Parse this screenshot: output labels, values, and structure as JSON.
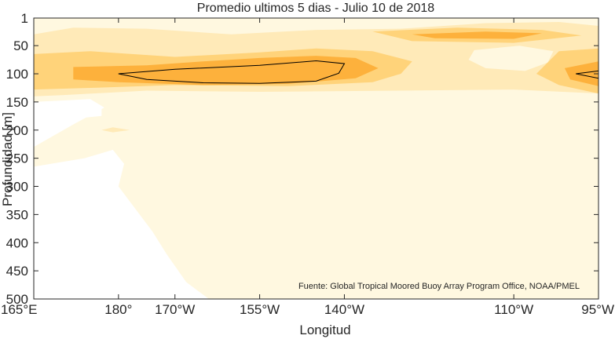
{
  "chart_data": {
    "type": "heatmap",
    "title": "Promedio ultimos 5 dias - Julio 10 de 2018",
    "xlabel": "Longitud",
    "ylabel": "Profundidad [m]",
    "x_ticks": [
      {
        "value": 165,
        "label": "165°E"
      },
      {
        "value": 180,
        "label": "180°"
      },
      {
        "value": 190,
        "label": "170°W"
      },
      {
        "value": 205,
        "label": "155°W"
      },
      {
        "value": 220,
        "label": "140°W"
      },
      {
        "value": 250,
        "label": "110°W"
      },
      {
        "value": 265,
        "label": "95°W"
      }
    ],
    "y_ticks": [
      {
        "value": 1,
        "label": "1"
      },
      {
        "value": 50,
        "label": "50"
      },
      {
        "value": 100,
        "label": "100"
      },
      {
        "value": 150,
        "label": "150"
      },
      {
        "value": 200,
        "label": "200"
      },
      {
        "value": 250,
        "label": "250"
      },
      {
        "value": 300,
        "label": "300"
      },
      {
        "value": 350,
        "label": "350"
      },
      {
        "value": 400,
        "label": "400"
      },
      {
        "value": 450,
        "label": "450"
      },
      {
        "value": 500,
        "label": "500"
      }
    ],
    "xlim": [
      165,
      265
    ],
    "ylim": [
      1,
      500
    ],
    "y_reversed": true,
    "annotation": "Fuente: Global Tropical Moored Buoy Array Program Office, NOAA/PMEL",
    "colors": {
      "level0": "#ffffff",
      "level1": "#fff8e0",
      "level2": "#ffeab8",
      "level3": "#ffd37a",
      "level4": "#fdb13c",
      "level5": "#f7882a",
      "contour": "#000000",
      "axis": "#262626"
    },
    "regions": [
      {
        "level": 0,
        "points": [
          [
            165,
            150
          ],
          [
            175,
            145
          ],
          [
            177.5,
            160
          ],
          [
            172,
            190
          ],
          [
            165,
            230
          ]
        ]
      },
      {
        "level": 0,
        "points": [
          [
            165,
            265
          ],
          [
            174,
            250
          ],
          [
            179,
            235
          ],
          [
            181,
            260
          ],
          [
            180,
            300
          ],
          [
            183,
            340
          ],
          [
            186,
            380
          ],
          [
            188.5,
            420
          ],
          [
            192,
            470
          ],
          [
            196,
            500
          ],
          [
            165,
            500
          ]
        ]
      },
      {
        "level": 0,
        "points": [
          [
            173,
            160
          ],
          [
            177,
            160
          ],
          [
            177,
            175
          ],
          [
            172,
            180
          ],
          [
            166,
            185
          ],
          [
            166,
            175
          ]
        ]
      },
      {
        "level": 0,
        "points": [
          [
            248,
            70
          ],
          [
            251,
            66
          ],
          [
            254,
            75
          ],
          [
            250,
            78
          ]
        ]
      },
      {
        "level": 2,
        "points": [
          [
            165,
            30
          ],
          [
            172,
            18
          ],
          [
            185,
            20
          ],
          [
            200,
            30
          ],
          [
            215,
            22
          ],
          [
            230,
            20
          ],
          [
            245,
            10
          ],
          [
            258,
            8
          ],
          [
            265,
            15
          ],
          [
            265,
            135
          ],
          [
            250,
            128
          ],
          [
            230,
            130
          ],
          [
            205,
            132
          ],
          [
            185,
            130
          ],
          [
            170,
            138
          ],
          [
            165,
            140
          ]
        ]
      },
      {
        "level": 1,
        "points": [
          [
            243,
            58
          ],
          [
            251,
            50
          ],
          [
            257,
            60
          ],
          [
            256,
            80
          ],
          [
            252,
            95
          ],
          [
            245,
            90
          ],
          [
            242,
            75
          ]
        ]
      },
      {
        "level": 3,
        "points": [
          [
            165,
            65
          ],
          [
            175,
            60
          ],
          [
            190,
            70
          ],
          [
            205,
            62
          ],
          [
            215,
            55
          ],
          [
            225,
            60
          ],
          [
            232,
            78
          ],
          [
            230,
            100
          ],
          [
            225,
            115
          ],
          [
            210,
            122
          ],
          [
            190,
            120
          ],
          [
            175,
            125
          ],
          [
            165,
            128
          ]
        ]
      },
      {
        "level": 3,
        "points": [
          [
            225,
            25
          ],
          [
            240,
            18
          ],
          [
            255,
            22
          ],
          [
            262,
            32
          ],
          [
            250,
            45
          ],
          [
            232,
            42
          ]
        ]
      },
      {
        "level": 3,
        "points": [
          [
            258,
            60
          ],
          [
            265,
            55
          ],
          [
            265,
            135
          ],
          [
            258,
            120
          ],
          [
            254,
            100
          ]
        ]
      },
      {
        "level": 4,
        "points": [
          [
            172,
            88
          ],
          [
            185,
            85
          ],
          [
            195,
            78
          ],
          [
            205,
            72
          ],
          [
            215,
            68
          ],
          [
            222,
            72
          ],
          [
            226,
            90
          ],
          [
            222,
            108
          ],
          [
            210,
            118
          ],
          [
            195,
            120
          ],
          [
            180,
            115
          ],
          [
            172,
            110
          ]
        ]
      },
      {
        "level": 4,
        "points": [
          [
            232,
            30
          ],
          [
            245,
            25
          ],
          [
            255,
            28
          ],
          [
            250,
            38
          ],
          [
            236,
            37
          ]
        ]
      },
      {
        "level": 4,
        "points": [
          [
            259,
            90
          ],
          [
            265,
            78
          ],
          [
            265,
            122
          ],
          [
            260,
            110
          ]
        ]
      },
      {
        "level": 1,
        "points": [
          [
            175,
            200
          ],
          [
            178,
            190
          ],
          [
            182,
            200
          ],
          [
            178,
            208
          ]
        ]
      },
      {
        "level": 2,
        "points": [
          [
            177,
            200
          ],
          [
            179,
            195
          ],
          [
            182,
            200
          ],
          [
            179,
            204
          ]
        ]
      },
      {
        "level": 1,
        "points": [
          [
            185,
            290
          ],
          [
            190,
            270
          ],
          [
            199,
            300
          ],
          [
            190,
            320
          ],
          [
            186,
            310
          ]
        ]
      },
      {
        "level": 1,
        "points": [
          [
            235,
            300
          ],
          [
            242,
            290
          ],
          [
            255,
            292
          ],
          [
            263,
            300
          ],
          [
            252,
            315
          ],
          [
            240,
            312
          ]
        ]
      }
    ],
    "contours": [
      {
        "points": [
          [
            180,
            100
          ],
          [
            190,
            92
          ],
          [
            205,
            85
          ],
          [
            215,
            77
          ],
          [
            220,
            82
          ],
          [
            219,
            99
          ],
          [
            215,
            113
          ],
          [
            205,
            117
          ],
          [
            195,
            116
          ],
          [
            185,
            110
          ]
        ]
      },
      {
        "points": [
          [
            265,
            95
          ],
          [
            261,
            100
          ],
          [
            265,
            108
          ]
        ]
      }
    ]
  }
}
